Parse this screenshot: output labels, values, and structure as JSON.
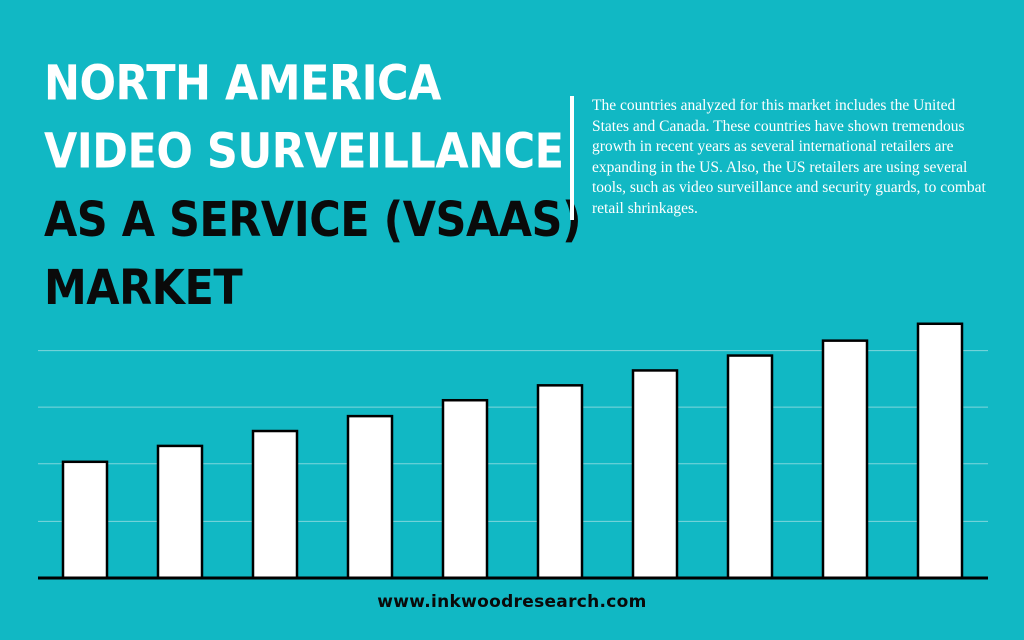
{
  "title": {
    "lines": [
      {
        "text": "NORTH AMERICA",
        "color": "#ffffff"
      },
      {
        "text": "VIDEO SURVEILLANCE",
        "color": "#ffffff"
      },
      {
        "text": "AS A SERVICE (VSAAS)",
        "color": "#0a0a0a"
      },
      {
        "text": "MARKET",
        "color": "#0a0a0a"
      }
    ]
  },
  "description": {
    "text": "The countries analyzed for this market includes the United States and Canada. These countries have shown tremendous growth in recent years as several international retailers are expanding in the US. Also, the US retailers are using several tools, such as video surveillance and security guards, to combat retail shrinkages."
  },
  "footer": {
    "website": "www.inkwoodresearch.com"
  },
  "colors": {
    "background": "#11b8c4",
    "bar_fill": "#ffffff",
    "bar_stroke": "#000000",
    "gridline": "#7fd6dc",
    "baseline": "#000000"
  },
  "chart_data": {
    "type": "bar",
    "title": "",
    "xlabel": "",
    "ylabel": "",
    "categories": [
      "",
      "",
      "",
      "",
      "",
      "",
      "",
      "",
      "",
      ""
    ],
    "values": [
      117,
      133,
      148,
      163,
      179,
      194,
      209,
      224,
      239,
      256
    ],
    "ylim": [
      0,
      290
    ],
    "grid": true,
    "gridlines": [
      57,
      115,
      172,
      229
    ]
  }
}
